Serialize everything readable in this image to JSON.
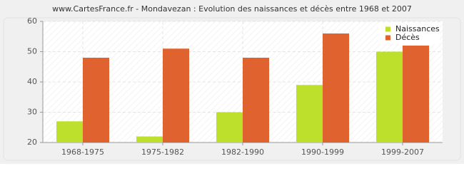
{
  "chart_data": {
    "type": "bar",
    "title": "www.CartesFrance.fr - Mondavezan : Evolution des naissances et décès entre 1968 et 2007",
    "categories": [
      "1968-1975",
      "1975-1982",
      "1982-1990",
      "1990-1999",
      "1999-2007"
    ],
    "series": [
      {
        "name": "Naissances",
        "color": "#bde02c",
        "values": [
          27,
          22,
          30,
          39,
          50
        ]
      },
      {
        "name": "Décès",
        "color": "#e0622e",
        "values": [
          48,
          51,
          48,
          56,
          52
        ]
      }
    ],
    "ylim": [
      20,
      60
    ],
    "yticks": [
      20,
      30,
      40,
      50,
      60
    ],
    "grid": true,
    "legend": "top-right"
  }
}
